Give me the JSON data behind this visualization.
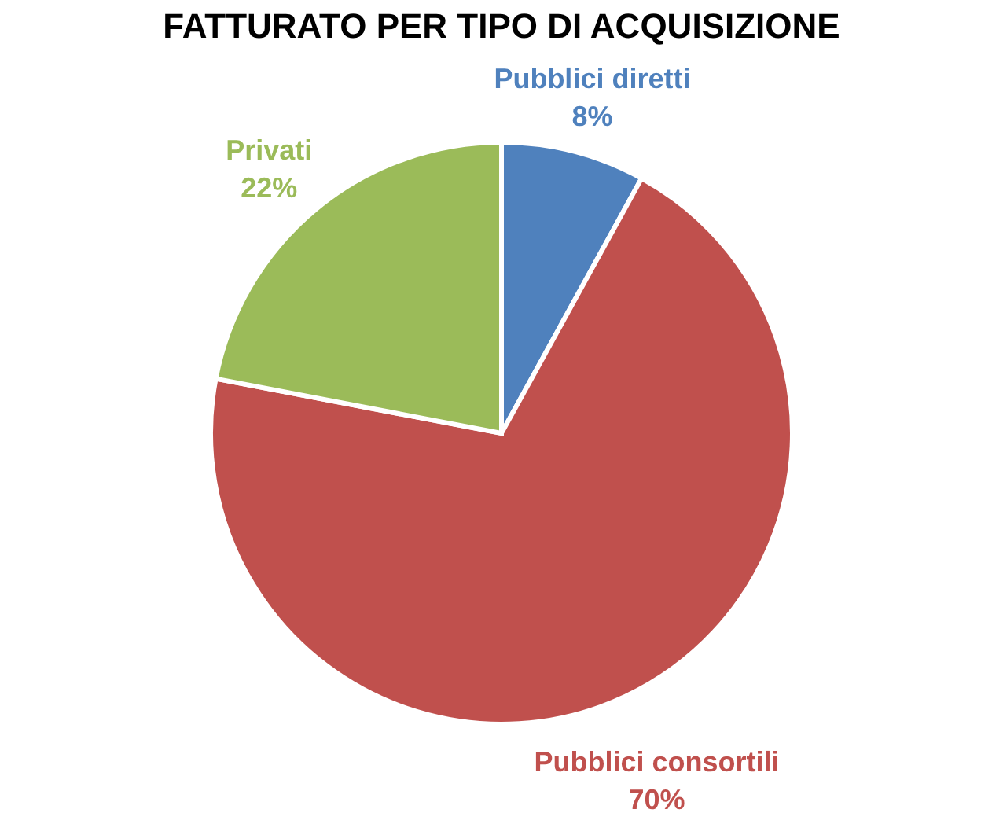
{
  "chart_data": {
    "type": "pie",
    "title": "FATTURATO PER TIPO DI ACQUISIZIONE",
    "categories": [
      "Pubblici diretti",
      "Pubblici consortili",
      "Privati"
    ],
    "values": [
      8,
      70,
      22
    ],
    "value_labels": [
      "8%",
      "70%",
      "22%"
    ],
    "colors": [
      "#4f81bd",
      "#c0504d",
      "#9bbb59"
    ],
    "legend": false
  }
}
